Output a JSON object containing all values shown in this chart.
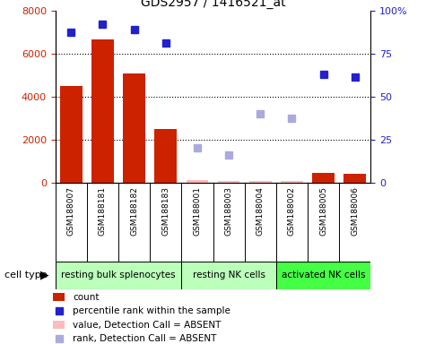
{
  "title": "GDS2957 / 1416521_at",
  "samples": [
    "GSM188007",
    "GSM188181",
    "GSM188182",
    "GSM188183",
    "GSM188001",
    "GSM188003",
    "GSM188004",
    "GSM188002",
    "GSM188005",
    "GSM188006"
  ],
  "count_values": [
    4500,
    6650,
    5050,
    2500,
    100,
    80,
    50,
    50,
    420,
    400
  ],
  "count_absent": [
    false,
    false,
    false,
    false,
    true,
    true,
    true,
    true,
    false,
    false
  ],
  "percentile_values": [
    87,
    92,
    89,
    81,
    null,
    null,
    null,
    null,
    63,
    61
  ],
  "rank_absent_values": [
    null,
    null,
    null,
    null,
    20,
    16,
    40,
    37,
    null,
    null
  ],
  "group_ranges": [
    {
      "start": 0,
      "end": 3,
      "label": "resting bulk splenocytes",
      "color": "#bbffbb"
    },
    {
      "start": 4,
      "end": 6,
      "label": "resting NK cells",
      "color": "#bbffbb"
    },
    {
      "start": 7,
      "end": 9,
      "label": "activated NK cells",
      "color": "#44ff44"
    }
  ],
  "ylim_left": [
    0,
    8000
  ],
  "ylim_right": [
    0,
    100
  ],
  "yticks_left": [
    0,
    2000,
    4000,
    6000,
    8000
  ],
  "yticks_right": [
    0,
    25,
    50,
    75,
    100
  ],
  "yticklabels_right": [
    "0",
    "25",
    "50",
    "75",
    "100%"
  ],
  "bar_color_present": "#cc2200",
  "bar_color_absent": "#ffbbbb",
  "dot_color_present": "#2222cc",
  "dot_color_absent": "#aaaadd",
  "sample_bg_color": "#d8d8d8",
  "grid_color": "#000000",
  "grid_linestyle": "dotted",
  "grid_yticks": [
    2000,
    4000,
    6000
  ]
}
